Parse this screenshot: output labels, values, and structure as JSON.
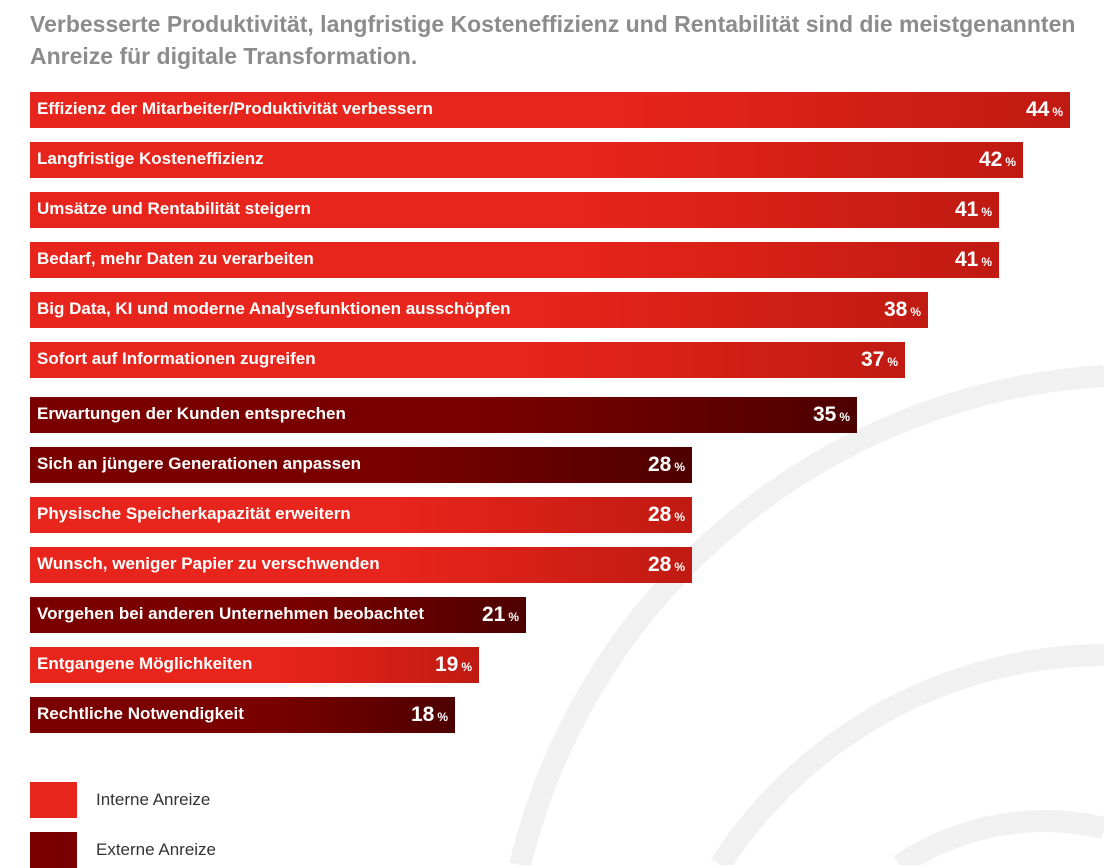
{
  "title": "Verbesserte Produktivität, langfristige Kosteneffizienz und Rentabilität sind die meistgenannten Anreize für digitale Transformation.",
  "colors": {
    "interne": "#e8251c",
    "interne_dark": "#c01a12",
    "externe": "#7a0000",
    "externe_dark": "#4e0000",
    "title": "#8c8c8c",
    "background_arc": "#f1f1f1"
  },
  "legend": {
    "interne_label": "Interne Anreize",
    "externe_label": "Externe Anreize"
  },
  "chart_data": {
    "type": "bar",
    "orientation": "horizontal",
    "title": "Verbesserte Produktivität, langfristige Kosteneffizienz und Rentabilität sind die meistgenannten Anreize für digitale Transformation.",
    "unit": "%",
    "xlim": [
      0,
      44
    ],
    "categories": [
      "Effizienz der Mitarbeiter/Produktivität verbessern",
      "Langfristige Kosteneffizienz",
      "Umsätze und Rentabilität steigern",
      "Bedarf, mehr Daten zu verarbeiten",
      "Big Data, KI und moderne Analysefunktionen ausschöpfen",
      "Sofort auf Informationen zugreifen",
      "Erwartungen der Kunden entsprechen",
      "Sich an jüngere Generationen anpassen",
      "Physische Speicherkapazität erweitern",
      "Wunsch, weniger Papier zu verschwenden",
      "Vorgehen bei anderen Unternehmen beobachtet",
      "Entgangene Möglichkeiten",
      "Rechtliche Notwendigkeit"
    ],
    "values": [
      44,
      42,
      41,
      41,
      38,
      37,
      35,
      28,
      28,
      28,
      21,
      19,
      18
    ],
    "groups": [
      "interne",
      "interne",
      "interne",
      "interne",
      "interne",
      "interne",
      "externe",
      "externe",
      "interne",
      "interne",
      "externe",
      "interne",
      "externe"
    ],
    "series": [
      {
        "name": "Interne Anreize",
        "key": "interne"
      },
      {
        "name": "Externe Anreize",
        "key": "externe"
      }
    ],
    "legend_position": "bottom-left",
    "grid": false
  }
}
